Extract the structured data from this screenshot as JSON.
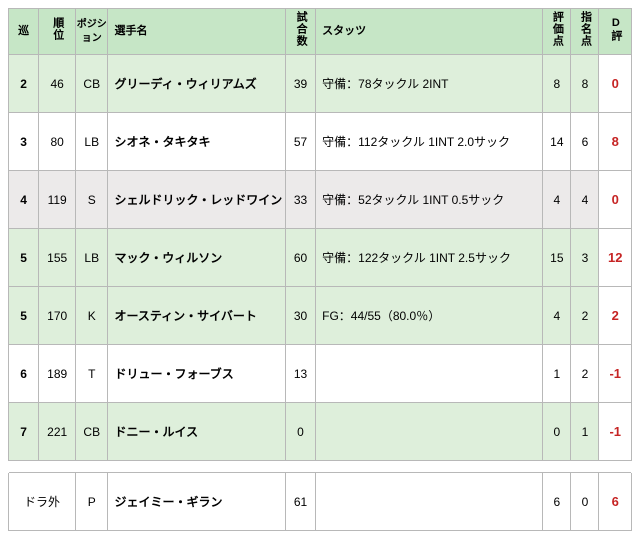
{
  "colors": {
    "header_bg": "#c6e6c6",
    "row_green": "#deefdb",
    "row_white": "#ffffff",
    "row_gray": "#eceaea",
    "border": "#b8b8b8",
    "deval_color": "#c62424"
  },
  "columns": {
    "round": "巡",
    "pick": "順位",
    "position": "ポジション",
    "name": "選手名",
    "games": "試合数",
    "stats": "スタッツ",
    "eval": "評価点",
    "draft_pt": "指名点",
    "d_eval": "D評"
  },
  "rows": [
    {
      "row_class": "row-green",
      "round": "2",
      "pick": "46",
      "position": "CB",
      "name": "グリーディ・ウィリアムズ",
      "games": "39",
      "stats": "守備：78タックル 2INT",
      "eval": "8",
      "draft_pt": "8",
      "d_eval": "0"
    },
    {
      "row_class": "row-white",
      "round": "3",
      "pick": "80",
      "position": "LB",
      "name": "シオネ・タキタキ",
      "games": "57",
      "stats": "守備：112タックル 1INT 2.0サック",
      "eval": "14",
      "draft_pt": "6",
      "d_eval": "8"
    },
    {
      "row_class": "row-gray",
      "round": "4",
      "pick": "119",
      "position": "S",
      "name": "シェルドリック・レッドワイン",
      "games": "33",
      "stats": "守備：52タックル 1INT 0.5サック",
      "eval": "4",
      "draft_pt": "4",
      "d_eval": "0"
    },
    {
      "row_class": "row-green",
      "round": "5",
      "pick": "155",
      "position": "LB",
      "name": "マック・ウィルソン",
      "games": "60",
      "stats": "守備：122タックル 1INT 2.5サック",
      "eval": "15",
      "draft_pt": "3",
      "d_eval": "12"
    },
    {
      "row_class": "row-green",
      "round": "5",
      "pick": "170",
      "position": "K",
      "name": "オースティン・サイバート",
      "games": "30",
      "stats": "FG：44/55（80.0％）",
      "eval": "4",
      "draft_pt": "2",
      "d_eval": "2"
    },
    {
      "row_class": "row-white",
      "round": "6",
      "pick": "189",
      "position": "T",
      "name": "ドリュー・フォーブス",
      "games": "13",
      "stats": "",
      "eval": "1",
      "draft_pt": "2",
      "d_eval": "-1"
    },
    {
      "row_class": "row-green",
      "round": "7",
      "pick": "221",
      "position": "CB",
      "name": "ドニー・ルイス",
      "games": "0",
      "stats": "",
      "eval": "0",
      "draft_pt": "1",
      "d_eval": "-1"
    }
  ],
  "extra_row": {
    "row_class": "row-white",
    "round": "ドラ外",
    "position": "P",
    "name": "ジェイミー・ギラン",
    "games": "61",
    "stats": "",
    "eval": "6",
    "draft_pt": "0",
    "d_eval": "6"
  }
}
